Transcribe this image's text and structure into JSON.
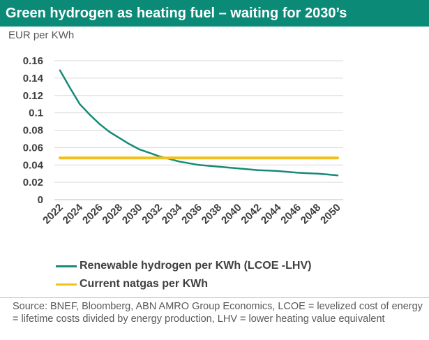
{
  "header": {
    "title": "Green hydrogen as heating fuel – waiting for 2030’s",
    "unit_label": "EUR per KWh"
  },
  "colors": {
    "title_bg": "#0b8a78",
    "hydrogen": "#178a78",
    "natgas": "#f2c01a",
    "grid": "#d9d9d9"
  },
  "chart_data": {
    "type": "line",
    "title": "Green hydrogen as heating fuel – waiting for 2030’s",
    "ylabel": "EUR per KWh",
    "xlabel": "",
    "ylim": [
      0,
      0.16
    ],
    "xlim": [
      2022,
      2050
    ],
    "grid": true,
    "y_ticks": [
      "0",
      "0.02",
      "0.04",
      "0.06",
      "0.08",
      "0.1",
      "0.12",
      "0.14",
      "0.16"
    ],
    "x_ticks": [
      "2022",
      "2024",
      "2026",
      "2028",
      "2030",
      "2032",
      "2034",
      "2036",
      "2038",
      "2040",
      "2042",
      "2044",
      "2046",
      "2048",
      "2050"
    ],
    "x": [
      2022,
      2023,
      2024,
      2025,
      2026,
      2027,
      2028,
      2029,
      2030,
      2031,
      2032,
      2033,
      2034,
      2035,
      2036,
      2037,
      2038,
      2039,
      2040,
      2041,
      2042,
      2043,
      2044,
      2045,
      2046,
      2047,
      2048,
      2049,
      2050
    ],
    "legend_position": "bottom",
    "series": [
      {
        "name": "Renewable hydrogen per KWh (LCOE -LHV)",
        "values": [
          0.149,
          0.129,
          0.11,
          0.098,
          0.087,
          0.078,
          0.071,
          0.064,
          0.058,
          0.054,
          0.05,
          0.047,
          0.044,
          0.042,
          0.04,
          0.039,
          0.038,
          0.037,
          0.036,
          0.035,
          0.034,
          0.0335,
          0.033,
          0.032,
          0.031,
          0.0305,
          0.03,
          0.029,
          0.028
        ]
      },
      {
        "name": "Current natgas per KWh",
        "values": [
          0.048,
          0.048,
          0.048,
          0.048,
          0.048,
          0.048,
          0.048,
          0.048,
          0.048,
          0.048,
          0.048,
          0.048,
          0.048,
          0.048,
          0.048,
          0.048,
          0.048,
          0.048,
          0.048,
          0.048,
          0.048,
          0.048,
          0.048,
          0.048,
          0.048,
          0.048,
          0.048,
          0.048,
          0.048
        ]
      }
    ]
  },
  "legend": [
    {
      "label": "Renewable hydrogen per KWh (LCOE -LHV)"
    },
    {
      "label": "Current natgas per KWh"
    }
  ],
  "source": "Source: BNEF, Bloomberg, ABN AMRO Group Economics, LCOE = levelized cost of energy = lifetime costs divided by energy production, LHV = lower heating value equivalent"
}
